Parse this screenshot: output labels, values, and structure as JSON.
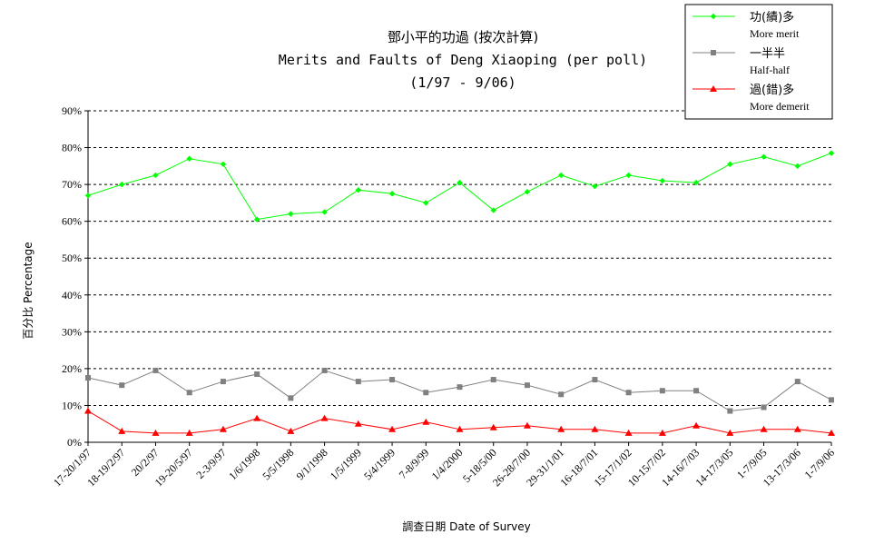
{
  "chart_data": {
    "type": "line",
    "title": [
      "鄧小平的功過 (按次計算)",
      "Merits and Faults of Deng Xiaoping (per poll)",
      "(1/97 - 9/06)"
    ],
    "xlabel": "調查日期 Date of Survey",
    "ylabel": "百分比 Percentage",
    "ylim": [
      0,
      90
    ],
    "yticks": [
      "0%",
      "10%",
      "20%",
      "30%",
      "40%",
      "50%",
      "60%",
      "70%",
      "80%",
      "90%"
    ],
    "grid": true,
    "legend_position": "top-right",
    "categories": [
      "17-20/1/97",
      "18-19/2/97",
      "20/2/97",
      "19-20/5/97",
      "2-3/9/97",
      "1/6/1998",
      "5/5/1998",
      "9/1/1998",
      "1/5/1999",
      "5/4/1999",
      "7-8/9/99",
      "1/4/2000",
      "5-18/5/00",
      "26-28/7/00",
      "29-31/1/01",
      "16-18/7/01",
      "15-17/1/02",
      "10-15/7/02",
      "14-16/7/03",
      "14-17/3/05",
      "1-7/9/05",
      "13-17/3/06",
      "1-7/9/06"
    ],
    "series": [
      {
        "name": "功(績)多",
        "name_en": "More merit",
        "color": "#00ff00",
        "marker": "diamond",
        "values": [
          67,
          70,
          72.5,
          77,
          75.5,
          60.5,
          62,
          62.5,
          68.5,
          67.5,
          65,
          70.5,
          63,
          68,
          72.5,
          69.5,
          72.5,
          71,
          70.5,
          75.5,
          77.5,
          75,
          78.5
        ]
      },
      {
        "name": "一半半",
        "name_en": "Half-half",
        "color": "#808080",
        "marker": "square",
        "values": [
          17.5,
          15.5,
          19.5,
          13.5,
          16.5,
          18.5,
          12,
          19.5,
          16.5,
          17,
          13.5,
          15,
          17,
          15.5,
          13,
          17,
          13.5,
          14,
          14,
          8.5,
          9.5,
          16.5,
          11.5
        ]
      },
      {
        "name": "過(錯)多",
        "name_en": "More demerit",
        "color": "#ff0000",
        "marker": "triangle",
        "values": [
          8.5,
          3,
          2.5,
          2.5,
          3.5,
          6.5,
          3,
          6.5,
          5,
          3.5,
          5.5,
          3.5,
          4,
          4.5,
          3.5,
          3.5,
          2.5,
          2.5,
          4.5,
          2.5,
          3.5,
          3.5,
          2.5
        ]
      }
    ]
  }
}
